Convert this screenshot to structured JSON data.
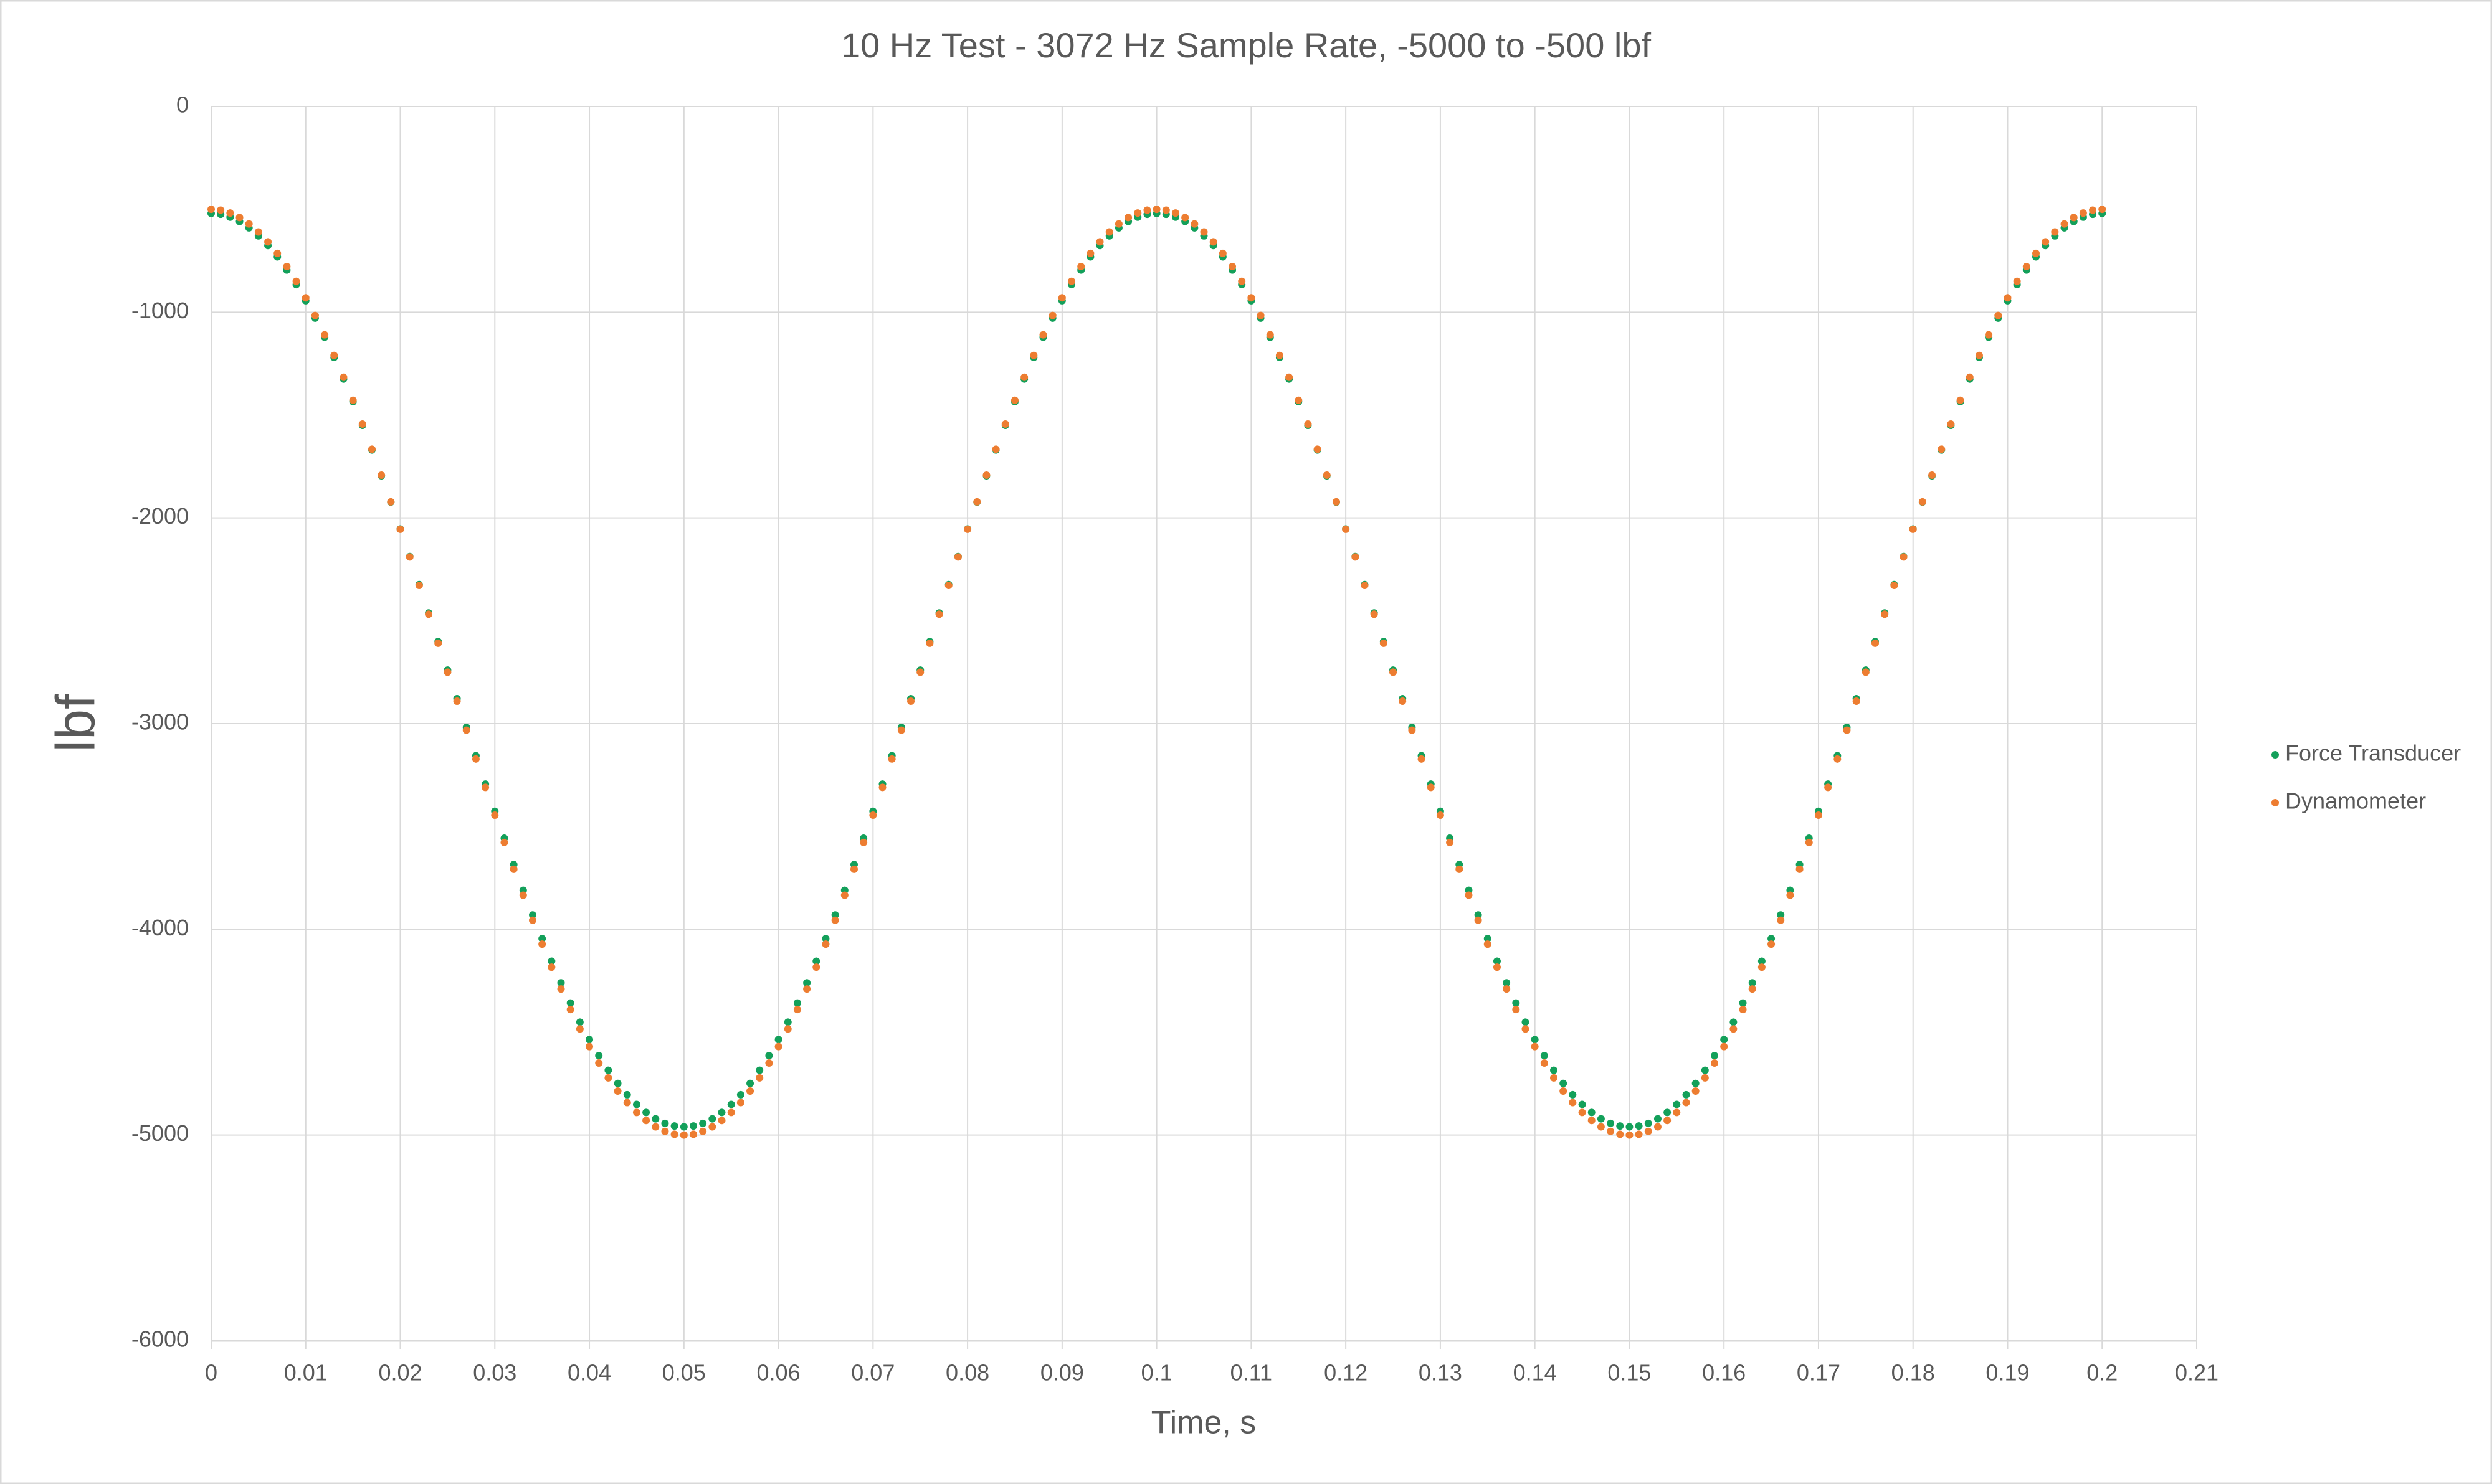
{
  "chart_data": {
    "type": "scatter",
    "title": "10 Hz Test - 3072 Hz Sample Rate, -5000 to -500 lbf",
    "x_label": "Time, s",
    "y_label": "lbf",
    "xlim": [
      0,
      0.21
    ],
    "xticks": [
      0,
      0.01,
      0.02,
      0.03,
      0.04,
      0.05,
      0.06,
      0.07,
      0.08,
      0.09,
      0.1,
      0.11,
      0.12,
      0.13,
      0.14,
      0.15,
      0.16,
      0.17,
      0.18,
      0.19,
      0.2,
      0.21
    ],
    "ylim": [
      -6000,
      0
    ],
    "yticks": [
      -6000,
      -5000,
      -4000,
      -3000,
      -2000,
      -1000,
      0
    ],
    "grid": true,
    "legend": "right",
    "x": [
      0,
      0.001,
      0.002,
      0.003,
      0.004,
      0.005,
      0.006,
      0.007,
      0.008,
      0.009,
      0.01,
      0.011,
      0.012,
      0.013,
      0.014,
      0.015,
      0.016,
      0.017,
      0.018,
      0.019,
      0.02,
      0.021,
      0.022,
      0.023,
      0.024,
      0.025,
      0.026,
      0.027,
      0.028,
      0.029,
      0.03,
      0.031,
      0.032,
      0.033,
      0.034,
      0.035,
      0.036,
      0.037,
      0.038,
      0.039,
      0.04,
      0.041,
      0.042,
      0.043,
      0.044,
      0.045,
      0.046,
      0.047,
      0.048,
      0.049,
      0.05,
      0.051,
      0.052,
      0.053,
      0.054,
      0.055,
      0.056,
      0.057,
      0.058,
      0.059,
      0.06,
      0.061,
      0.062,
      0.063,
      0.064,
      0.065,
      0.066,
      0.067,
      0.068,
      0.069,
      0.07,
      0.071,
      0.072,
      0.073,
      0.074,
      0.075,
      0.076,
      0.077,
      0.078,
      0.079,
      0.08,
      0.081,
      0.082,
      0.083,
      0.084,
      0.085,
      0.086,
      0.087,
      0.088,
      0.089,
      0.09,
      0.091,
      0.092,
      0.093,
      0.094,
      0.095,
      0.096,
      0.097,
      0.098,
      0.099,
      0.1,
      0.101,
      0.102,
      0.103,
      0.104,
      0.105,
      0.106,
      0.107,
      0.108,
      0.109,
      0.11,
      0.111,
      0.112,
      0.113,
      0.114,
      0.115,
      0.116,
      0.117,
      0.118,
      0.119,
      0.12,
      0.121,
      0.122,
      0.123,
      0.124,
      0.125,
      0.126,
      0.127,
      0.128,
      0.129,
      0.13,
      0.131,
      0.132,
      0.133,
      0.134,
      0.135,
      0.136,
      0.137,
      0.138,
      0.139,
      0.14,
      0.141,
      0.142,
      0.143,
      0.144,
      0.145,
      0.146,
      0.147,
      0.148,
      0.149,
      0.15,
      0.151,
      0.152,
      0.153,
      0.154,
      0.155,
      0.156,
      0.157,
      0.158,
      0.159,
      0.16,
      0.161,
      0.162,
      0.163,
      0.164,
      0.165,
      0.166,
      0.167,
      0.168,
      0.169,
      0.17,
      0.171,
      0.172,
      0.173,
      0.174,
      0.175,
      0.176,
      0.177,
      0.178,
      0.179,
      0.18,
      0.181,
      0.182,
      0.183,
      0.184,
      0.185,
      0.186,
      0.187,
      0.188,
      0.189,
      0.19,
      0.191,
      0.192,
      0.193,
      0.194,
      0.195,
      0.196,
      0.197,
      0.198,
      0.199,
      0.2
    ],
    "series": [
      {
        "name": "Force Transducer",
        "color": "#13a05a",
        "values": [
          -520,
          -524,
          -538,
          -559,
          -590,
          -629,
          -676,
          -731,
          -795,
          -866,
          -944,
          -1029,
          -1122,
          -1220,
          -1325,
          -1435,
          -1550,
          -1670,
          -1795,
          -1923,
          -2054,
          -2188,
          -2324,
          -2462,
          -2601,
          -2740,
          -2879,
          -3018,
          -3156,
          -3294,
          -3426,
          -3557,
          -3685,
          -3810,
          -3930,
          -4045,
          -4155,
          -4260,
          -4358,
          -4451,
          -4536,
          -4614,
          -4685,
          -4749,
          -4804,
          -4851,
          -4890,
          -4921,
          -4943,
          -4956,
          -4960,
          -4956,
          -4943,
          -4921,
          -4890,
          -4851,
          -4804,
          -4749,
          -4685,
          -4614,
          -4536,
          -4451,
          -4358,
          -4260,
          -4155,
          -4045,
          -3930,
          -3810,
          -3685,
          -3557,
          -3426,
          -3294,
          -3156,
          -3018,
          -2879,
          -2740,
          -2601,
          -2462,
          -2324,
          -2188,
          -2054,
          -1923,
          -1795,
          -1670,
          -1550,
          -1435,
          -1325,
          -1220,
          -1122,
          -1029,
          -944,
          -866,
          -795,
          -731,
          -676,
          -629,
          -590,
          -559,
          -538,
          -524,
          -520,
          -524,
          -538,
          -559,
          -590,
          -629,
          -676,
          -731,
          -795,
          -866,
          -944,
          -1029,
          -1122,
          -1220,
          -1325,
          -1435,
          -1550,
          -1670,
          -1795,
          -1923,
          -2054,
          -2188,
          -2324,
          -2462,
          -2601,
          -2740,
          -2879,
          -3018,
          -3156,
          -3294,
          -3426,
          -3557,
          -3685,
          -3810,
          -3930,
          -4045,
          -4155,
          -4260,
          -4358,
          -4451,
          -4536,
          -4614,
          -4685,
          -4749,
          -4804,
          -4851,
          -4890,
          -4921,
          -4943,
          -4956,
          -4960,
          -4956,
          -4943,
          -4921,
          -4890,
          -4851,
          -4804,
          -4749,
          -4685,
          -4614,
          -4536,
          -4451,
          -4358,
          -4260,
          -4155,
          -4045,
          -3930,
          -3810,
          -3685,
          -3557,
          -3426,
          -3294,
          -3156,
          -3018,
          -2879,
          -2740,
          -2601,
          -2462,
          -2324,
          -2188,
          -2054,
          -1923,
          -1795,
          -1670,
          -1550,
          -1435,
          -1325,
          -1220,
          -1122,
          -1029,
          -944,
          -866,
          -795,
          -731,
          -676,
          -629,
          -590,
          -559,
          -538,
          -524,
          -520
        ]
      },
      {
        "name": "Dynamometer",
        "color": "#ed7d31",
        "values": [
          -500,
          -504,
          -518,
          -540,
          -571,
          -610,
          -658,
          -714,
          -778,
          -850,
          -930,
          -1016,
          -1110,
          -1210,
          -1316,
          -1428,
          -1544,
          -1666,
          -1792,
          -1922,
          -2055,
          -2190,
          -2328,
          -2468,
          -2609,
          -2750,
          -2891,
          -3032,
          -3172,
          -3310,
          -3445,
          -3578,
          -3708,
          -3834,
          -3956,
          -4072,
          -4184,
          -4290,
          -4390,
          -4484,
          -4570,
          -4650,
          -4722,
          -4786,
          -4842,
          -4890,
          -4929,
          -4960,
          -4982,
          -4996,
          -5000,
          -4996,
          -4982,
          -4960,
          -4929,
          -4890,
          -4842,
          -4786,
          -4722,
          -4650,
          -4570,
          -4484,
          -4390,
          -4290,
          -4184,
          -4072,
          -3956,
          -3834,
          -3708,
          -3578,
          -3445,
          -3310,
          -3172,
          -3032,
          -2891,
          -2750,
          -2609,
          -2468,
          -2328,
          -2190,
          -2055,
          -1922,
          -1792,
          -1666,
          -1544,
          -1428,
          -1316,
          -1210,
          -1110,
          -1016,
          -930,
          -850,
          -778,
          -714,
          -658,
          -610,
          -571,
          -540,
          -518,
          -504,
          -500,
          -504,
          -518,
          -540,
          -571,
          -610,
          -658,
          -714,
          -778,
          -850,
          -930,
          -1016,
          -1110,
          -1210,
          -1316,
          -1428,
          -1544,
          -1666,
          -1792,
          -1922,
          -2055,
          -2190,
          -2328,
          -2468,
          -2609,
          -2750,
          -2891,
          -3032,
          -3172,
          -3310,
          -3445,
          -3578,
          -3708,
          -3834,
          -3956,
          -4072,
          -4184,
          -4290,
          -4390,
          -4484,
          -4570,
          -4650,
          -4722,
          -4786,
          -4842,
          -4890,
          -4929,
          -4960,
          -4982,
          -4996,
          -5000,
          -4996,
          -4982,
          -4960,
          -4929,
          -4890,
          -4842,
          -4786,
          -4722,
          -4650,
          -4570,
          -4484,
          -4390,
          -4290,
          -4184,
          -4072,
          -3956,
          -3834,
          -3708,
          -3578,
          -3445,
          -3310,
          -3172,
          -3032,
          -2891,
          -2750,
          -2609,
          -2468,
          -2328,
          -2190,
          -2055,
          -1922,
          -1792,
          -1666,
          -1544,
          -1428,
          -1316,
          -1210,
          -1110,
          -1016,
          -930,
          -850,
          -778,
          -714,
          -658,
          -610,
          -571,
          -540,
          -518,
          -504,
          -500
        ]
      }
    ]
  }
}
